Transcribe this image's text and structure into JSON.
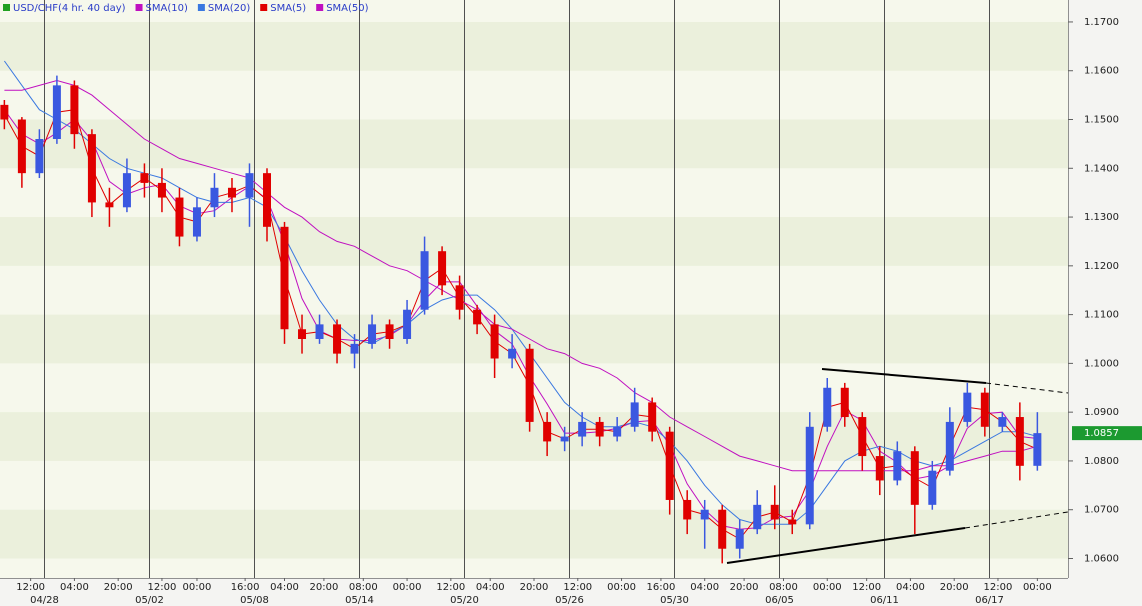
{
  "chart_data": {
    "type": "candlestick",
    "title": "USD/CHF(4 hr. 40 day)",
    "title_color": "#20a020",
    "up_color": "#3a58e0",
    "down_color": "#e00000",
    "xlim": [
      0,
      244
    ],
    "ylim": [
      1.056,
      1.1745
    ],
    "yticks": [
      {
        "value": 1.06,
        "label": "1.0600"
      },
      {
        "value": 1.07,
        "label": "1.0700"
      },
      {
        "value": 1.08,
        "label": "1.0800"
      },
      {
        "value": 1.09,
        "label": "1.0900"
      },
      {
        "value": 1.1,
        "label": "1.1000"
      },
      {
        "value": 1.11,
        "label": "1.1100"
      },
      {
        "value": 1.12,
        "label": "1.1200"
      },
      {
        "value": 1.13,
        "label": "1.1300"
      },
      {
        "value": 1.14,
        "label": "1.1400"
      },
      {
        "value": 1.15,
        "label": "1.1500"
      },
      {
        "value": 1.16,
        "label": "1.1600"
      },
      {
        "value": 1.17,
        "label": "1.1700"
      }
    ],
    "xticks": [
      {
        "value": 7,
        "label": "12:00"
      },
      {
        "value": 17,
        "label": "04:00"
      },
      {
        "value": 27,
        "label": "20:00"
      },
      {
        "value": 37,
        "label": "12:00"
      },
      {
        "value": 45,
        "label": "00:00"
      },
      {
        "value": 56,
        "label": "16:00"
      },
      {
        "value": 65,
        "label": "04:00"
      },
      {
        "value": 74,
        "label": "20:00"
      },
      {
        "value": 83,
        "label": "08:00"
      },
      {
        "value": 93,
        "label": "00:00"
      },
      {
        "value": 103,
        "label": "12:00"
      },
      {
        "value": 112,
        "label": "04:00"
      },
      {
        "value": 122,
        "label": "20:00"
      },
      {
        "value": 132,
        "label": "12:00"
      },
      {
        "value": 142,
        "label": "00:00"
      },
      {
        "value": 151,
        "label": "16:00"
      },
      {
        "value": 161,
        "label": "04:00"
      },
      {
        "value": 170,
        "label": "20:00"
      },
      {
        "value": 179,
        "label": "08:00"
      },
      {
        "value": 189,
        "label": "00:00"
      },
      {
        "value": 198,
        "label": "12:00"
      },
      {
        "value": 208,
        "label": "04:00"
      },
      {
        "value": 218,
        "label": "20:00"
      },
      {
        "value": 228,
        "label": "12:00"
      },
      {
        "value": 237,
        "label": "00:00"
      }
    ],
    "date_ticks": [
      {
        "value": 10,
        "label": "04/28"
      },
      {
        "value": 34,
        "label": "05/02"
      },
      {
        "value": 58,
        "label": "05/08"
      },
      {
        "value": 82,
        "label": "05/14"
      },
      {
        "value": 106,
        "label": "05/20"
      },
      {
        "value": 130,
        "label": "05/26"
      },
      {
        "value": 154,
        "label": "05/30"
      },
      {
        "value": 178,
        "label": "06/05"
      },
      {
        "value": 202,
        "label": "06/11"
      },
      {
        "value": 226,
        "label": "06/17"
      }
    ],
    "last_price": {
      "value": 1.0857,
      "label": "1.0857"
    },
    "last_price_color": "#1c9a30",
    "x": [
      1,
      5,
      9,
      13,
      17,
      21,
      25,
      29,
      33,
      37,
      41,
      45,
      49,
      53,
      57,
      61,
      65,
      69,
      73,
      77,
      81,
      85,
      89,
      93,
      97,
      101,
      105,
      109,
      113,
      117,
      121,
      125,
      129,
      133,
      137,
      141,
      145,
      149,
      153,
      157,
      161,
      165,
      169,
      173,
      177,
      181,
      185,
      189,
      193,
      197,
      201,
      205,
      209,
      213,
      217,
      221,
      225,
      229,
      233,
      237
    ],
    "open": [
      1.153,
      1.15,
      1.139,
      1.146,
      1.157,
      1.147,
      1.133,
      1.132,
      1.139,
      1.137,
      1.134,
      1.126,
      1.132,
      1.136,
      1.134,
      1.139,
      1.128,
      1.107,
      1.105,
      1.108,
      1.102,
      1.104,
      1.108,
      1.105,
      1.111,
      1.123,
      1.116,
      1.111,
      1.108,
      1.101,
      1.103,
      1.088,
      1.084,
      1.085,
      1.088,
      1.085,
      1.087,
      1.092,
      1.086,
      1.072,
      1.068,
      1.07,
      1.062,
      1.066,
      1.071,
      1.068,
      1.067,
      1.087,
      1.095,
      1.089,
      1.081,
      1.076,
      1.082,
      1.071,
      1.078,
      1.088,
      1.094,
      1.087,
      1.089,
      1.079
    ],
    "high": [
      1.154,
      1.1505,
      1.148,
      1.159,
      1.158,
      1.148,
      1.136,
      1.142,
      1.141,
      1.14,
      1.136,
      1.134,
      1.139,
      1.138,
      1.141,
      1.14,
      1.129,
      1.11,
      1.11,
      1.109,
      1.106,
      1.11,
      1.109,
      1.113,
      1.126,
      1.124,
      1.118,
      1.112,
      1.11,
      1.106,
      1.104,
      1.09,
      1.087,
      1.09,
      1.089,
      1.089,
      1.095,
      1.093,
      1.087,
      1.074,
      1.072,
      1.071,
      1.068,
      1.074,
      1.075,
      1.07,
      1.09,
      1.097,
      1.096,
      1.09,
      1.083,
      1.084,
      1.083,
      1.08,
      1.091,
      1.096,
      1.095,
      1.09,
      1.092,
      1.09
    ],
    "low": [
      1.148,
      1.136,
      1.138,
      1.145,
      1.144,
      1.13,
      1.128,
      1.131,
      1.134,
      1.131,
      1.124,
      1.125,
      1.13,
      1.131,
      1.128,
      1.125,
      1.104,
      1.102,
      1.104,
      1.1,
      1.099,
      1.103,
      1.103,
      1.104,
      1.11,
      1.114,
      1.109,
      1.106,
      1.097,
      1.099,
      1.086,
      1.081,
      1.082,
      1.083,
      1.083,
      1.084,
      1.086,
      1.084,
      1.069,
      1.065,
      1.062,
      1.059,
      1.06,
      1.065,
      1.066,
      1.065,
      1.066,
      1.086,
      1.087,
      1.078,
      1.073,
      1.075,
      1.065,
      1.07,
      1.077,
      1.087,
      1.085,
      1.086,
      1.076,
      1.078
    ],
    "close": [
      1.15,
      1.139,
      1.146,
      1.157,
      1.147,
      1.133,
      1.132,
      1.139,
      1.137,
      1.134,
      1.126,
      1.132,
      1.136,
      1.134,
      1.139,
      1.128,
      1.107,
      1.105,
      1.108,
      1.102,
      1.104,
      1.108,
      1.105,
      1.111,
      1.123,
      1.116,
      1.111,
      1.108,
      1.101,
      1.103,
      1.088,
      1.084,
      1.085,
      1.088,
      1.085,
      1.087,
      1.092,
      1.086,
      1.072,
      1.068,
      1.07,
      1.062,
      1.066,
      1.071,
      1.068,
      1.067,
      1.087,
      1.095,
      1.089,
      1.081,
      1.076,
      1.082,
      1.071,
      1.078,
      1.088,
      1.094,
      1.087,
      1.089,
      1.079,
      1.0857
    ],
    "series": [
      {
        "name": "SMA(10)",
        "color": "#c010c0",
        "values": [
          1.152,
          1.147,
          1.145,
          1.1473,
          1.15,
          1.1457,
          1.1373,
          1.1347,
          1.136,
          1.1367,
          1.1323,
          1.1307,
          1.1313,
          1.134,
          1.1363,
          1.1337,
          1.1247,
          1.1133,
          1.1067,
          1.105,
          1.1047,
          1.1047,
          1.1057,
          1.108,
          1.113,
          1.1167,
          1.1167,
          1.1117,
          1.1067,
          1.104,
          1.0973,
          1.0917,
          1.0857,
          1.0857,
          1.086,
          1.0867,
          1.088,
          1.0883,
          1.0833,
          1.0753,
          1.07,
          1.0667,
          1.066,
          1.0663,
          1.0683,
          1.0687,
          1.074,
          1.083,
          1.0903,
          1.0883,
          1.082,
          1.0797,
          1.0763,
          1.077,
          1.079,
          1.0867,
          1.0897,
          1.09,
          1.085,
          1.0846
        ]
      },
      {
        "name": "SMA(20)",
        "color": "#3a78e0",
        "values": [
          1.162,
          1.157,
          1.152,
          1.15,
          1.148,
          1.145,
          1.142,
          1.14,
          1.139,
          1.138,
          1.136,
          1.134,
          1.133,
          1.133,
          1.134,
          1.132,
          1.126,
          1.119,
          1.113,
          1.108,
          1.105,
          1.104,
          1.106,
          1.108,
          1.111,
          1.113,
          1.114,
          1.114,
          1.111,
          1.107,
          1.102,
          1.097,
          1.092,
          1.089,
          1.087,
          1.087,
          1.088,
          1.087,
          1.084,
          1.08,
          1.075,
          1.071,
          1.068,
          1.067,
          1.067,
          1.067,
          1.07,
          1.075,
          1.08,
          1.082,
          1.083,
          1.082,
          1.08,
          1.079,
          1.08,
          1.082,
          1.084,
          1.086,
          1.086,
          1.085
        ]
      },
      {
        "name": "SMA(5)",
        "color": "#e00000",
        "values": [
          1.151,
          1.1445,
          1.1425,
          1.1515,
          1.152,
          1.14,
          1.1325,
          1.1355,
          1.138,
          1.1355,
          1.13,
          1.129,
          1.134,
          1.135,
          1.1365,
          1.1335,
          1.1175,
          1.106,
          1.1065,
          1.105,
          1.103,
          1.106,
          1.1065,
          1.108,
          1.117,
          1.1195,
          1.1135,
          1.1095,
          1.1045,
          1.102,
          1.0955,
          1.086,
          1.0845,
          1.0865,
          1.0865,
          1.086,
          1.0895,
          1.089,
          1.079,
          1.07,
          1.069,
          1.066,
          1.064,
          1.0685,
          1.0695,
          1.0675,
          1.077,
          1.091,
          1.092,
          1.085,
          1.0785,
          1.079,
          1.0765,
          1.0745,
          1.083,
          1.091,
          1.0905,
          1.088,
          1.084,
          1.0824
        ]
      },
      {
        "name": "SMA(50)",
        "color": "#c010c0",
        "values": [
          1.156,
          1.156,
          1.157,
          1.158,
          1.157,
          1.155,
          1.152,
          1.149,
          1.146,
          1.144,
          1.142,
          1.141,
          1.14,
          1.139,
          1.138,
          1.135,
          1.132,
          1.13,
          1.127,
          1.125,
          1.124,
          1.122,
          1.12,
          1.119,
          1.117,
          1.115,
          1.113,
          1.111,
          1.108,
          1.107,
          1.105,
          1.103,
          1.102,
          1.1,
          1.099,
          1.097,
          1.094,
          1.092,
          1.089,
          1.087,
          1.085,
          1.083,
          1.081,
          1.08,
          1.079,
          1.078,
          1.078,
          1.078,
          1.078,
          1.078,
          1.078,
          1.078,
          1.078,
          1.079,
          1.079,
          1.08,
          1.081,
          1.082,
          1.082,
          1.083
        ]
      }
    ]
  }
}
